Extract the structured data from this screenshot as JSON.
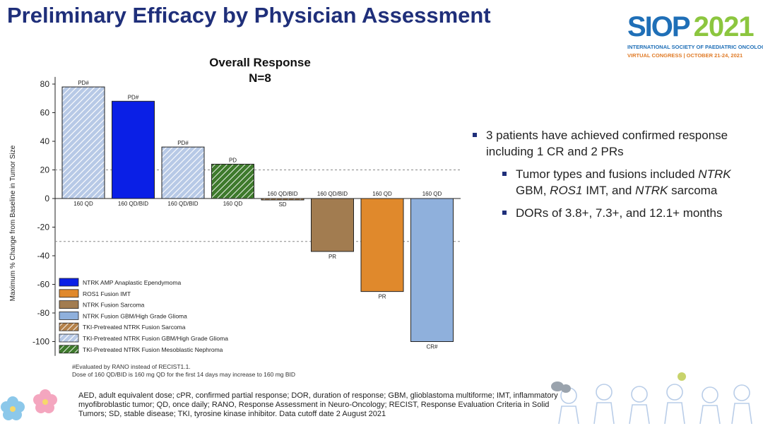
{
  "slide_title": "Preliminary Efficacy by Physician Assessment",
  "logo": {
    "siop": "SIOP",
    "year": "2021",
    "line1": "INTERNATIONAL SOCIETY OF PAEDIATRIC ONCOLOGY",
    "line2": "VIRTUAL CONGRESS | OCTOBER 21-24, 2021"
  },
  "chart_data": {
    "type": "bar",
    "title": "Overall Response",
    "subtitle": "N=8",
    "ylabel": "Maximum % Change from Baseline in Tumor Size",
    "ylim": [
      -110,
      85
    ],
    "yticks": [
      80,
      60,
      40,
      20,
      0,
      -20,
      -40,
      -60,
      -80,
      -100
    ],
    "reference_lines": [
      20,
      -30
    ],
    "bars": [
      {
        "value": 78,
        "dose": "160 QD",
        "response": "PD#",
        "color": "#b7c9e6",
        "hatch": true
      },
      {
        "value": 68,
        "dose": "160 QD/BID",
        "response": "PD#",
        "color": "#0a1fe6",
        "hatch": false
      },
      {
        "value": 36,
        "dose": "160 QD/BID",
        "response": "PD#",
        "color": "#b7c9e6",
        "hatch": true
      },
      {
        "value": 24,
        "dose": "160 QD",
        "response": "PD",
        "color": "#3e7a2c",
        "hatch": true
      },
      {
        "value": -1,
        "dose": "160 QD/BID",
        "response": "SD",
        "color": "#b5824a",
        "hatch": true
      },
      {
        "value": -37,
        "dose": "160 QD/BID",
        "response": "PR",
        "color": "#a27c50",
        "hatch": false
      },
      {
        "value": -65,
        "dose": "160 QD",
        "response": "PR",
        "color": "#e0892c",
        "hatch": false
      },
      {
        "value": -100,
        "dose": "160 QD",
        "response": "CR#",
        "color": "#8fb0dc",
        "hatch": false
      }
    ],
    "legend": [
      {
        "label": "NTRK AMP Anaplastic Ependymoma",
        "color": "#0a1fe6",
        "hatch": false
      },
      {
        "label": "ROS1 Fusion IMT",
        "color": "#e0892c",
        "hatch": false
      },
      {
        "label": "NTRK Fusion Sarcoma",
        "color": "#a27c50",
        "hatch": false
      },
      {
        "label": "NTRK Fusion GBM/High Grade Glioma",
        "color": "#8fb0dc",
        "hatch": false
      },
      {
        "label": "TKI-Pretreated NTRK Fusion Sarcoma",
        "color": "#b5824a",
        "hatch": true
      },
      {
        "label": "TKI-Pretreated NTRK Fusion GBM/High Grade Glioma",
        "color": "#b7c9e6",
        "hatch": true
      },
      {
        "label": "TKI-Pretreated NTRK Fusion Mesoblastic Nephroma",
        "color": "#3e7a2c",
        "hatch": true
      }
    ]
  },
  "bullets": {
    "main": "3 patients have achieved confirmed response including 1 CR and 2 PRs",
    "sub1_a": "Tumor types and fusions included ",
    "sub1_b": "NTRK",
    "sub1_c": " GBM, ",
    "sub1_d": "ROS1",
    "sub1_e": " IMT, and ",
    "sub1_f": "NTRK",
    "sub1_g": " sarcoma",
    "sub2": "DORs of 3.8+, 7.3+, and 12.1+ months"
  },
  "footnotes": {
    "line1": "#Evaluated by RANO instead of RECIST1.1.",
    "line2": "Dose of 160 QD/BID is 160 mg QD for the first 14 days may increase to 160 mg BID"
  },
  "abbreviations": "AED, adult equivalent dose; cPR, confirmed partial response; DOR, duration of response; GBM, glioblastoma multiforme; IMT, inflammatory myofibroblastic tumor; QD, once daily; RANO, Response Assessment in Neuro-Oncology; RECIST, Response Evaluation Criteria in Solid Tumors; SD, stable disease; TKI, tyrosine kinase inhibitor. Data cutoff date 2 August 2021"
}
